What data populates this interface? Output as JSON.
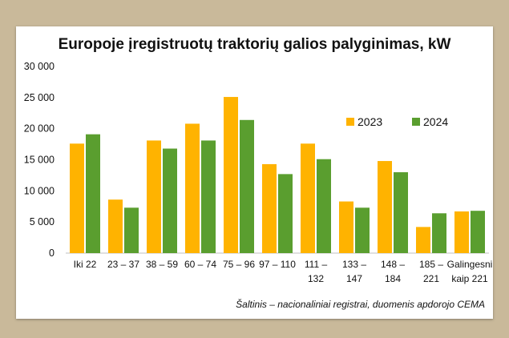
{
  "chart_data": {
    "type": "bar",
    "title": "Europoje įregistruotų traktorių galios palyginimas, kW",
    "source": "Šaltinis – nacionaliniai registrai, duomenis apdorojo CEMA",
    "categories": [
      [
        "Iki 22"
      ],
      [
        "23 – 37"
      ],
      [
        "38 – 59"
      ],
      [
        "60 – 74"
      ],
      [
        "75 – 96"
      ],
      [
        "97 – 110"
      ],
      [
        "111 –",
        "132"
      ],
      [
        "133 –",
        "147"
      ],
      [
        "148 –",
        "184"
      ],
      [
        "185 –",
        "221"
      ],
      [
        "Galingesni",
        "kaip 221"
      ]
    ],
    "series": [
      {
        "name": "2023",
        "color": "#ffb300",
        "values": [
          17600,
          8600,
          18100,
          20800,
          25100,
          14300,
          17600,
          8300,
          14800,
          4200,
          6700
        ]
      },
      {
        "name": "2024",
        "color": "#5a9e2f",
        "values": [
          19100,
          7300,
          16800,
          18100,
          21400,
          12700,
          15100,
          7300,
          13000,
          6400,
          6800
        ]
      }
    ],
    "ylim": [
      0,
      30000
    ],
    "yticks": [
      "0",
      "5 000",
      "10 000",
      "15 000",
      "20 000",
      "25 000",
      "30 000"
    ],
    "ytick_values": [
      0,
      5000,
      10000,
      15000,
      20000,
      25000,
      30000
    ],
    "legend_position": "top-right",
    "grid": false
  }
}
